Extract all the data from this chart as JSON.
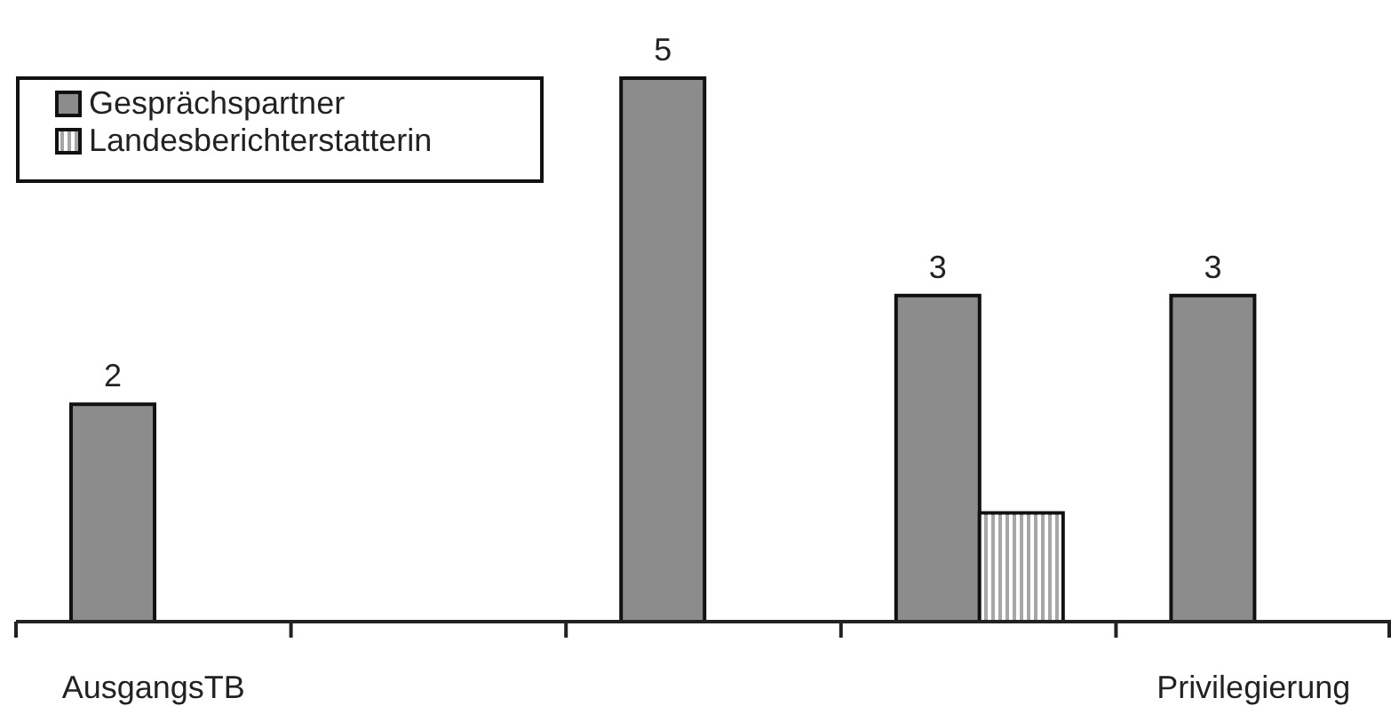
{
  "chart_data": {
    "type": "bar",
    "categories": [
      "AusgangsTB",
      null,
      null,
      null,
      "Privilegierung"
    ],
    "series": [
      {
        "name": "Gesprächspartner",
        "color": "#8c8c8c",
        "values": [
          2,
          null,
          5,
          3,
          3
        ],
        "value_labels": [
          "2",
          null,
          "5",
          "3",
          "3"
        ]
      },
      {
        "name": "Landesberichterstatterin",
        "color": "#a6a6a6",
        "values": [
          null,
          null,
          null,
          1,
          null
        ],
        "value_labels": [
          null,
          null,
          null,
          null,
          null
        ]
      }
    ],
    "legend": "top left"
  }
}
